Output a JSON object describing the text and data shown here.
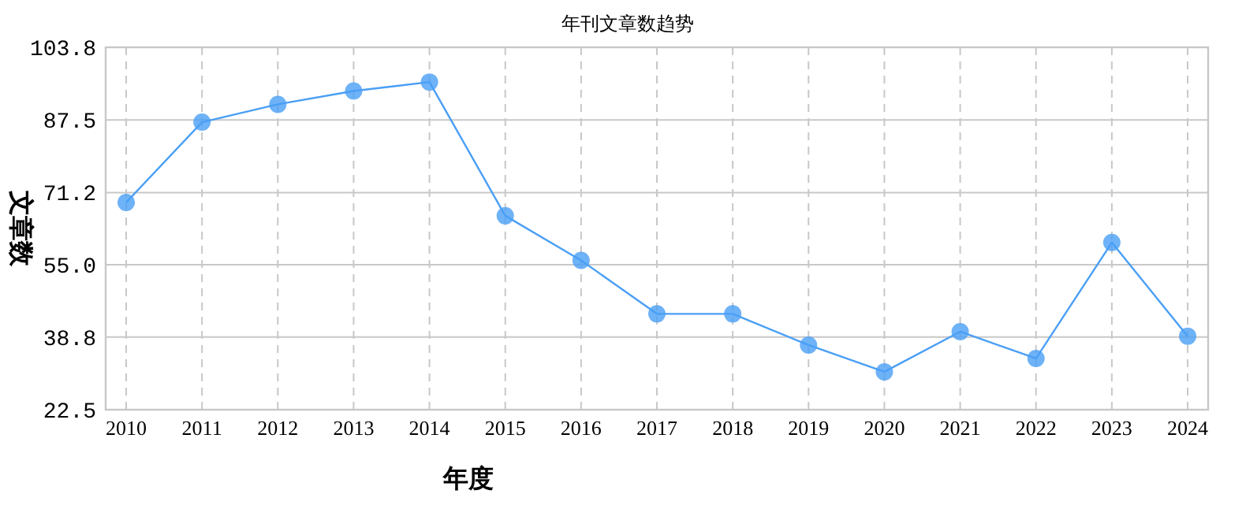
{
  "chart_data": {
    "type": "line",
    "title": "年刊文章数趋势",
    "xlabel": "年度",
    "ylabel": "文章数",
    "categories": [
      "2010",
      "2011",
      "2012",
      "2013",
      "2014",
      "2015",
      "2016",
      "2017",
      "2018",
      "2019",
      "2020",
      "2021",
      "2022",
      "2023",
      "2024"
    ],
    "series": [
      {
        "color": "#4a9ff5",
        "values": [
          69,
          87,
          91,
          94,
          96,
          66,
          56,
          44,
          44,
          37,
          31,
          40,
          34,
          60,
          39
        ]
      }
    ],
    "ylim": [
      22.5,
      103.8
    ],
    "yticks": [
      22.5,
      38.8,
      {
        "value": 55,
        "label": "55.0"
      },
      71.2,
      87.5,
      103.8
    ],
    "grid": true,
    "marker": "circle",
    "line_style": "solid"
  }
}
